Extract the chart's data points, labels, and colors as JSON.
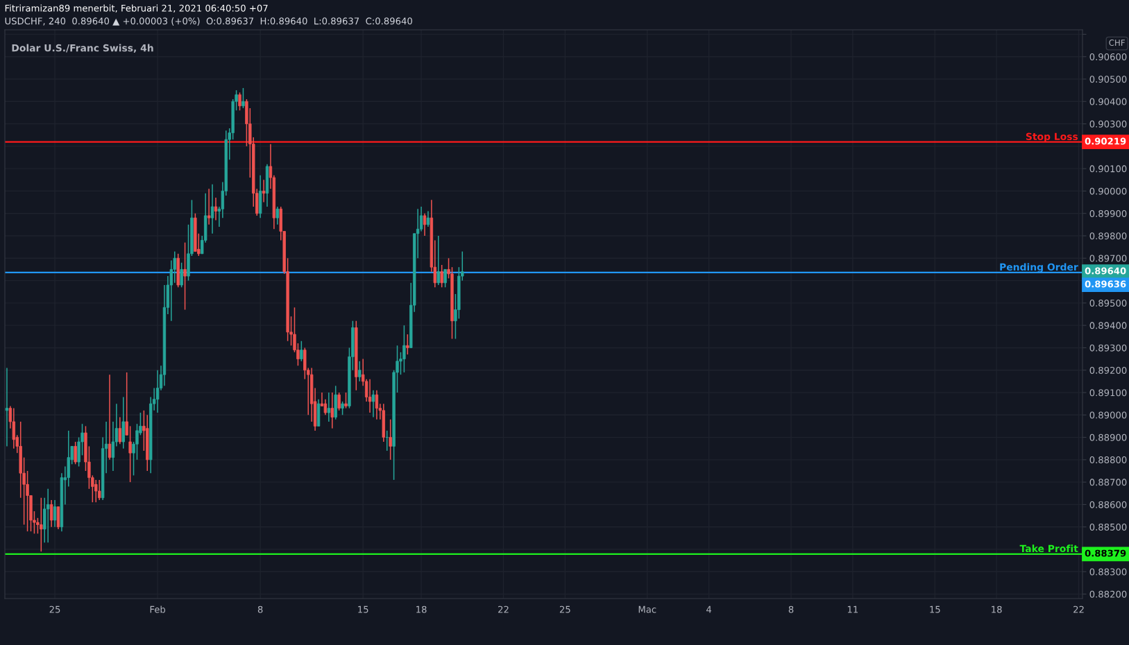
{
  "chart_data": {
    "type": "candlestick",
    "title": "Dolar U.S./Franc Swiss, 4h",
    "ylabel": "CHF",
    "annotations": [
      "Fitriramizan89 menerbit, Februari 21, 2021 06:40:50 +07",
      "USDCHF, 240  0.89640 ▲ +0.00003 (+0%)  O:0.89637  H:0.89640  L:0.89637  C:0.89640",
      "0.89640",
      "0.90219",
      "0.89636",
      "0.88379"
    ],
    "categories": [
      null,
      null,
      null,
      null,
      null,
      null,
      null,
      null,
      null,
      null,
      null,
      null,
      null,
      null,
      "25",
      null,
      null,
      null,
      null,
      null,
      null,
      null,
      null,
      null,
      null,
      null,
      null,
      null,
      null,
      null,
      null,
      null,
      null,
      null,
      null,
      null,
      null,
      null,
      null,
      null,
      null,
      null,
      null,
      null,
      "Feb",
      null,
      null,
      null,
      null,
      null,
      null,
      null,
      null,
      null,
      null,
      null,
      null,
      null,
      null,
      null,
      null,
      null,
      null,
      null,
      null,
      null,
      null,
      null,
      null,
      null,
      null,
      null,
      null,
      null,
      "8",
      null,
      null,
      null,
      null,
      null,
      null,
      null,
      null,
      null,
      null,
      null,
      null,
      null,
      null,
      null,
      null,
      null,
      null,
      null,
      null,
      null,
      null,
      null,
      null,
      null,
      null,
      null,
      null,
      null,
      "15",
      null,
      null,
      null,
      null,
      null,
      null,
      null,
      null,
      null,
      null,
      null,
      null,
      null,
      null,
      null,
      null,
      "18",
      null,
      null,
      null,
      null,
      null,
      null,
      null,
      null,
      null,
      null,
      null,
      null,
      null,
      null,
      null,
      null,
      null,
      null,
      null,
      null,
      null,
      null,
      null,
      "22",
      null,
      null,
      null,
      null,
      null,
      null,
      null,
      null,
      null,
      null,
      null,
      null,
      null,
      null,
      null,
      null,
      null,
      "25",
      null,
      null,
      null,
      null,
      null,
      null,
      null,
      null,
      null,
      null,
      null,
      null,
      null,
      null,
      null,
      null,
      null,
      null,
      null,
      null,
      null,
      null,
      null,
      "Mac",
      null,
      null,
      null,
      null,
      null,
      null,
      null,
      null,
      null,
      null,
      null,
      null,
      null,
      null,
      null,
      null,
      null,
      "4",
      null,
      null,
      null,
      null,
      null,
      null,
      null,
      null,
      null,
      null,
      null,
      null,
      null,
      null,
      null,
      null,
      null,
      null,
      null,
      null,
      null,
      null,
      null,
      "8",
      null,
      null,
      null,
      null,
      null,
      null,
      null,
      null,
      null,
      null,
      null,
      null,
      null,
      null,
      null,
      null,
      null,
      "11",
      null,
      null,
      null,
      null,
      null,
      null,
      null,
      null,
      null,
      null,
      null,
      null,
      null,
      null,
      null,
      null,
      null,
      null,
      null,
      null,
      null,
      null,
      null,
      "15",
      null,
      null,
      null,
      null,
      null,
      null,
      null,
      null,
      null,
      null,
      null,
      null,
      null,
      null,
      null,
      null,
      null,
      "18",
      null,
      null,
      null,
      null,
      null,
      null,
      null,
      null,
      null,
      null,
      null,
      null,
      null,
      null,
      null,
      null,
      null,
      null,
      null,
      null,
      null,
      null,
      null,
      "22"
    ],
    "ohlc": [
      [
        0.8902,
        0.8921,
        0.8886,
        0.8903
      ],
      [
        0.8903,
        0.8904,
        0.8894,
        0.8897
      ],
      [
        0.8897,
        0.8903,
        0.8885,
        0.8889
      ],
      [
        0.889,
        0.8891,
        0.8883,
        0.8886
      ],
      [
        0.8886,
        0.8897,
        0.8863,
        0.8874
      ],
      [
        0.8874,
        0.8881,
        0.8851,
        0.8869
      ],
      [
        0.8869,
        0.8875,
        0.8848,
        0.8864
      ],
      [
        0.8864,
        0.8864,
        0.8848,
        0.8853
      ],
      [
        0.8853,
        0.8857,
        0.8847,
        0.8852
      ],
      [
        0.8852,
        0.8854,
        0.8847,
        0.8851
      ],
      [
        0.8851,
        0.8863,
        0.8839,
        0.8849
      ],
      [
        0.8849,
        0.8863,
        0.8843,
        0.8858
      ],
      [
        0.8858,
        0.8867,
        0.8843,
        0.886
      ],
      [
        0.886,
        0.8862,
        0.885,
        0.8853
      ],
      [
        0.8853,
        0.8862,
        0.885,
        0.8859
      ],
      [
        0.8859,
        0.8859,
        0.8849,
        0.885
      ],
      [
        0.885,
        0.8874,
        0.8848,
        0.8872
      ],
      [
        0.8871,
        0.8877,
        0.886,
        0.8872
      ],
      [
        0.8872,
        0.8893,
        0.8868,
        0.8881
      ],
      [
        0.888,
        0.8886,
        0.8878,
        0.8886
      ],
      [
        0.8886,
        0.8888,
        0.8878,
        0.8879
      ],
      [
        0.8879,
        0.889,
        0.8877,
        0.8888
      ],
      [
        0.8888,
        0.8896,
        0.8882,
        0.8892
      ],
      [
        0.8892,
        0.8895,
        0.8875,
        0.8879
      ],
      [
        0.8879,
        0.8886,
        0.8867,
        0.8872
      ],
      [
        0.8872,
        0.8873,
        0.8861,
        0.8868
      ],
      [
        0.8869,
        0.8871,
        0.8861,
        0.8866
      ],
      [
        0.8866,
        0.8871,
        0.8862,
        0.8863
      ],
      [
        0.8863,
        0.889,
        0.8862,
        0.8885
      ],
      [
        0.8885,
        0.8897,
        0.8874,
        0.8887
      ],
      [
        0.8887,
        0.8918,
        0.888,
        0.8881
      ],
      [
        0.8881,
        0.8897,
        0.8875,
        0.8888
      ],
      [
        0.8888,
        0.8905,
        0.8886,
        0.8894
      ],
      [
        0.8894,
        0.8899,
        0.8887,
        0.8888
      ],
      [
        0.8888,
        0.8908,
        0.8885,
        0.8897
      ],
      [
        0.8897,
        0.8919,
        0.8891,
        0.8891
      ],
      [
        0.8888,
        0.8895,
        0.887,
        0.8883
      ],
      [
        0.8883,
        0.8888,
        0.8873,
        0.8887
      ],
      [
        0.8887,
        0.8896,
        0.888,
        0.8893
      ],
      [
        0.8892,
        0.8901,
        0.8891,
        0.8895
      ],
      [
        0.8895,
        0.8902,
        0.8884,
        0.8893
      ],
      [
        0.8894,
        0.89,
        0.8875,
        0.888
      ],
      [
        0.888,
        0.8908,
        0.8874,
        0.8905
      ],
      [
        0.8905,
        0.8912,
        0.8902,
        0.8907
      ],
      [
        0.8907,
        0.892,
        0.8901,
        0.8912
      ],
      [
        0.8912,
        0.8922,
        0.8911,
        0.8918
      ],
      [
        0.8918,
        0.8958,
        0.8913,
        0.8948
      ],
      [
        0.8948,
        0.8962,
        0.8945,
        0.8958
      ],
      [
        0.8958,
        0.8969,
        0.8942,
        0.8965
      ],
      [
        0.8965,
        0.8973,
        0.8959,
        0.897
      ],
      [
        0.897,
        0.8972,
        0.8957,
        0.8958
      ],
      [
        0.8958,
        0.8968,
        0.8957,
        0.8965
      ],
      [
        0.8965,
        0.8977,
        0.8947,
        0.8962
      ],
      [
        0.8962,
        0.8985,
        0.896,
        0.8972
      ],
      [
        0.8972,
        0.8996,
        0.8971,
        0.8988
      ],
      [
        0.8988,
        0.899,
        0.8973,
        0.8973
      ],
      [
        0.8974,
        0.8981,
        0.8971,
        0.8972
      ],
      [
        0.8972,
        0.898,
        0.8972,
        0.8978
      ],
      [
        0.8978,
        0.8999,
        0.8977,
        0.8989
      ],
      [
        0.8989,
        0.9001,
        0.8985,
        0.8988
      ],
      [
        0.8988,
        0.9003,
        0.8981,
        0.8993
      ],
      [
        0.8993,
        0.8997,
        0.8987,
        0.8991
      ],
      [
        0.8991,
        0.8993,
        0.8984,
        0.8992
      ],
      [
        0.8992,
        0.9004,
        0.8988,
        0.9
      ],
      [
        0.9,
        0.9027,
        0.8998,
        0.9023
      ],
      [
        0.9023,
        0.9028,
        0.9014,
        0.9026
      ],
      [
        0.9026,
        0.9041,
        0.9023,
        0.904
      ],
      [
        0.904,
        0.9045,
        0.9036,
        0.9043
      ],
      [
        0.9043,
        0.9044,
        0.9036,
        0.9038
      ],
      [
        0.9038,
        0.9046,
        0.9037,
        0.904
      ],
      [
        0.904,
        0.9041,
        0.902,
        0.903
      ],
      [
        0.903,
        0.9037,
        0.9006,
        0.9021
      ],
      [
        0.9021,
        0.9024,
        0.8993,
        0.8999
      ],
      [
        0.8999,
        0.9001,
        0.8989,
        0.899
      ],
      [
        0.899,
        0.9007,
        0.8988,
        0.9
      ],
      [
        0.9,
        0.9005,
        0.8995,
        0.8999
      ],
      [
        0.8999,
        0.9012,
        0.8993,
        0.9011
      ],
      [
        0.9011,
        0.9021,
        0.9001,
        0.9006
      ],
      [
        0.9006,
        0.9007,
        0.8983,
        0.8988
      ],
      [
        0.8988,
        0.8993,
        0.8985,
        0.8992
      ],
      [
        0.8992,
        0.8993,
        0.8978,
        0.8982
      ],
      [
        0.8982,
        0.8982,
        0.8963,
        0.8964
      ],
      [
        0.8964,
        0.897,
        0.8933,
        0.8937
      ],
      [
        0.8937,
        0.8944,
        0.8931,
        0.8936
      ],
      [
        0.8936,
        0.8948,
        0.8928,
        0.8929
      ],
      [
        0.8929,
        0.8932,
        0.8922,
        0.8925
      ],
      [
        0.8925,
        0.8933,
        0.8924,
        0.8929
      ],
      [
        0.8929,
        0.893,
        0.8916,
        0.892
      ],
      [
        0.892,
        0.8921,
        0.89,
        0.8918
      ],
      [
        0.8918,
        0.8921,
        0.8897,
        0.8905
      ],
      [
        0.8906,
        0.8912,
        0.8893,
        0.8895
      ],
      [
        0.8895,
        0.8907,
        0.8895,
        0.8905
      ],
      [
        0.8905,
        0.891,
        0.8904,
        0.8904
      ],
      [
        0.8905,
        0.8907,
        0.89,
        0.8901
      ],
      [
        0.8901,
        0.891,
        0.8897,
        0.8903
      ],
      [
        0.8903,
        0.891,
        0.8894,
        0.8899
      ],
      [
        0.8899,
        0.8913,
        0.8898,
        0.8909
      ],
      [
        0.8909,
        0.891,
        0.8902,
        0.8903
      ],
      [
        0.8903,
        0.8906,
        0.89,
        0.8905
      ],
      [
        0.8905,
        0.891,
        0.8903,
        0.8904
      ],
      [
        0.8904,
        0.893,
        0.8903,
        0.8926
      ],
      [
        0.8926,
        0.8942,
        0.892,
        0.8939
      ],
      [
        0.8939,
        0.8942,
        0.8911,
        0.8917
      ],
      [
        0.8917,
        0.8924,
        0.8915,
        0.892
      ],
      [
        0.8918,
        0.8925,
        0.8913,
        0.8915
      ],
      [
        0.8915,
        0.8916,
        0.8906,
        0.8908
      ],
      [
        0.8908,
        0.8916,
        0.8901,
        0.8906
      ],
      [
        0.8906,
        0.8911,
        0.8899,
        0.8909
      ],
      [
        0.8909,
        0.8911,
        0.8898,
        0.8903
      ],
      [
        0.8903,
        0.8905,
        0.8898,
        0.8902
      ],
      [
        0.8902,
        0.8905,
        0.8888,
        0.889
      ],
      [
        0.889,
        0.8893,
        0.8884,
        0.889
      ],
      [
        0.889,
        0.8898,
        0.888,
        0.8886
      ],
      [
        0.8886,
        0.892,
        0.8871,
        0.8919
      ],
      [
        0.8919,
        0.8931,
        0.891,
        0.8924
      ],
      [
        0.8924,
        0.8928,
        0.8918,
        0.8925
      ],
      [
        0.8925,
        0.894,
        0.8919,
        0.8931
      ],
      [
        0.8931,
        0.8936,
        0.8927,
        0.893
      ],
      [
        0.893,
        0.8959,
        0.893,
        0.8949
      ],
      [
        0.8949,
        0.8981,
        0.8946,
        0.8981
      ],
      [
        0.8981,
        0.8992,
        0.897,
        0.8983
      ],
      [
        0.8983,
        0.8993,
        0.8982,
        0.8989
      ],
      [
        0.8989,
        0.899,
        0.898,
        0.8985
      ],
      [
        0.8985,
        0.8991,
        0.8984,
        0.8988
      ],
      [
        0.8988,
        0.8996,
        0.8964,
        0.8966
      ],
      [
        0.8966,
        0.8978,
        0.8957,
        0.8959
      ],
      [
        0.8959,
        0.898,
        0.8958,
        0.8964
      ],
      [
        0.8964,
        0.8967,
        0.8957,
        0.8959
      ],
      [
        0.8959,
        0.8965,
        0.8957,
        0.8965
      ],
      [
        0.8965,
        0.897,
        0.8961,
        0.8963
      ],
      [
        0.8963,
        0.8966,
        0.8934,
        0.8942
      ],
      [
        0.8942,
        0.8954,
        0.8934,
        0.8947
      ],
      [
        0.8947,
        0.8966,
        0.8943,
        0.8962
      ],
      [
        0.8962,
        0.8973,
        0.896,
        0.8964
      ],
      null,
      null,
      null,
      null,
      null,
      null,
      null,
      null,
      null,
      null,
      null,
      null,
      null,
      null,
      null,
      null,
      null,
      null,
      null,
      null,
      null,
      null,
      null,
      null,
      null,
      null,
      null,
      null,
      null,
      null,
      null,
      null,
      null,
      null,
      null,
      null,
      null,
      null,
      null,
      null,
      null,
      null,
      null,
      null,
      null,
      null,
      null,
      null,
      null,
      null,
      null,
      null,
      null,
      null,
      null,
      null,
      null,
      null,
      null,
      null,
      null,
      null,
      null,
      null,
      null,
      null,
      null,
      null,
      null,
      null,
      null,
      null,
      null,
      null,
      null,
      null,
      null,
      null,
      null,
      null,
      null,
      null,
      null,
      null,
      null,
      null,
      null,
      null,
      null,
      null,
      null,
      null,
      null,
      null,
      null,
      null,
      null,
      null,
      null,
      null,
      null,
      null,
      null,
      null,
      null,
      null,
      null,
      null,
      null,
      null,
      null,
      null,
      null,
      null,
      null,
      null,
      null,
      null,
      null,
      null,
      null,
      null,
      null,
      null,
      null,
      null,
      null,
      null,
      null,
      null,
      null,
      null,
      null,
      null,
      null,
      null,
      null,
      null,
      null,
      null,
      null,
      null,
      null,
      null,
      null,
      null,
      null,
      null,
      null,
      null,
      null,
      null,
      null,
      null,
      null,
      null,
      null,
      null,
      null,
      null,
      null,
      null,
      null,
      null,
      null,
      null,
      null,
      null,
      null,
      null,
      null,
      null,
      null,
      null,
      null,
      null,
      null,
      null,
      null,
      null
    ],
    "ylim": [
      0.8818,
      0.9072
    ],
    "yticks": [
      {
        "value": 0.882,
        "label": "0.88200"
      },
      {
        "value": 0.883,
        "label": "0.88300"
      },
      {
        "value": 0.884,
        "label": null
      },
      {
        "value": 0.885,
        "label": "0.88500"
      },
      {
        "value": 0.886,
        "label": "0.88600"
      },
      {
        "value": 0.887,
        "label": "0.88700"
      },
      {
        "value": 0.888,
        "label": "0.88800"
      },
      {
        "value": 0.889,
        "label": "0.88900"
      },
      {
        "value": 0.89,
        "label": "0.89000"
      },
      {
        "value": 0.891,
        "label": "0.89100"
      },
      {
        "value": 0.892,
        "label": "0.89200"
      },
      {
        "value": 0.893,
        "label": "0.89300"
      },
      {
        "value": 0.894,
        "label": "0.89400"
      },
      {
        "value": 0.895,
        "label": "0.89500"
      },
      {
        "value": 0.896,
        "label": null
      },
      {
        "value": 0.897,
        "label": "0.89700"
      },
      {
        "value": 0.898,
        "label": "0.89800"
      },
      {
        "value": 0.899,
        "label": "0.89900"
      },
      {
        "value": 0.9,
        "label": "0.90000"
      },
      {
        "value": 0.901,
        "label": "0.90100"
      },
      {
        "value": 0.902,
        "label": null
      },
      {
        "value": 0.903,
        "label": "0.90300"
      },
      {
        "value": 0.904,
        "label": "0.90400"
      },
      {
        "value": 0.905,
        "label": "0.90500"
      },
      {
        "value": 0.906,
        "label": "0.90600"
      },
      {
        "value": 0.907,
        "label": null
      }
    ],
    "ref_lines": [
      {
        "axis": "y",
        "value": 0.90219,
        "label": "Stop Loss",
        "color": "#ff1a1a"
      },
      {
        "axis": "y",
        "value": 0.89636,
        "label": "Pending Order",
        "color": "#2196f3"
      },
      {
        "axis": "y",
        "value": 0.88379,
        "label": "Take Profit",
        "color": "#1ef01e"
      }
    ],
    "grid": true
  }
}
